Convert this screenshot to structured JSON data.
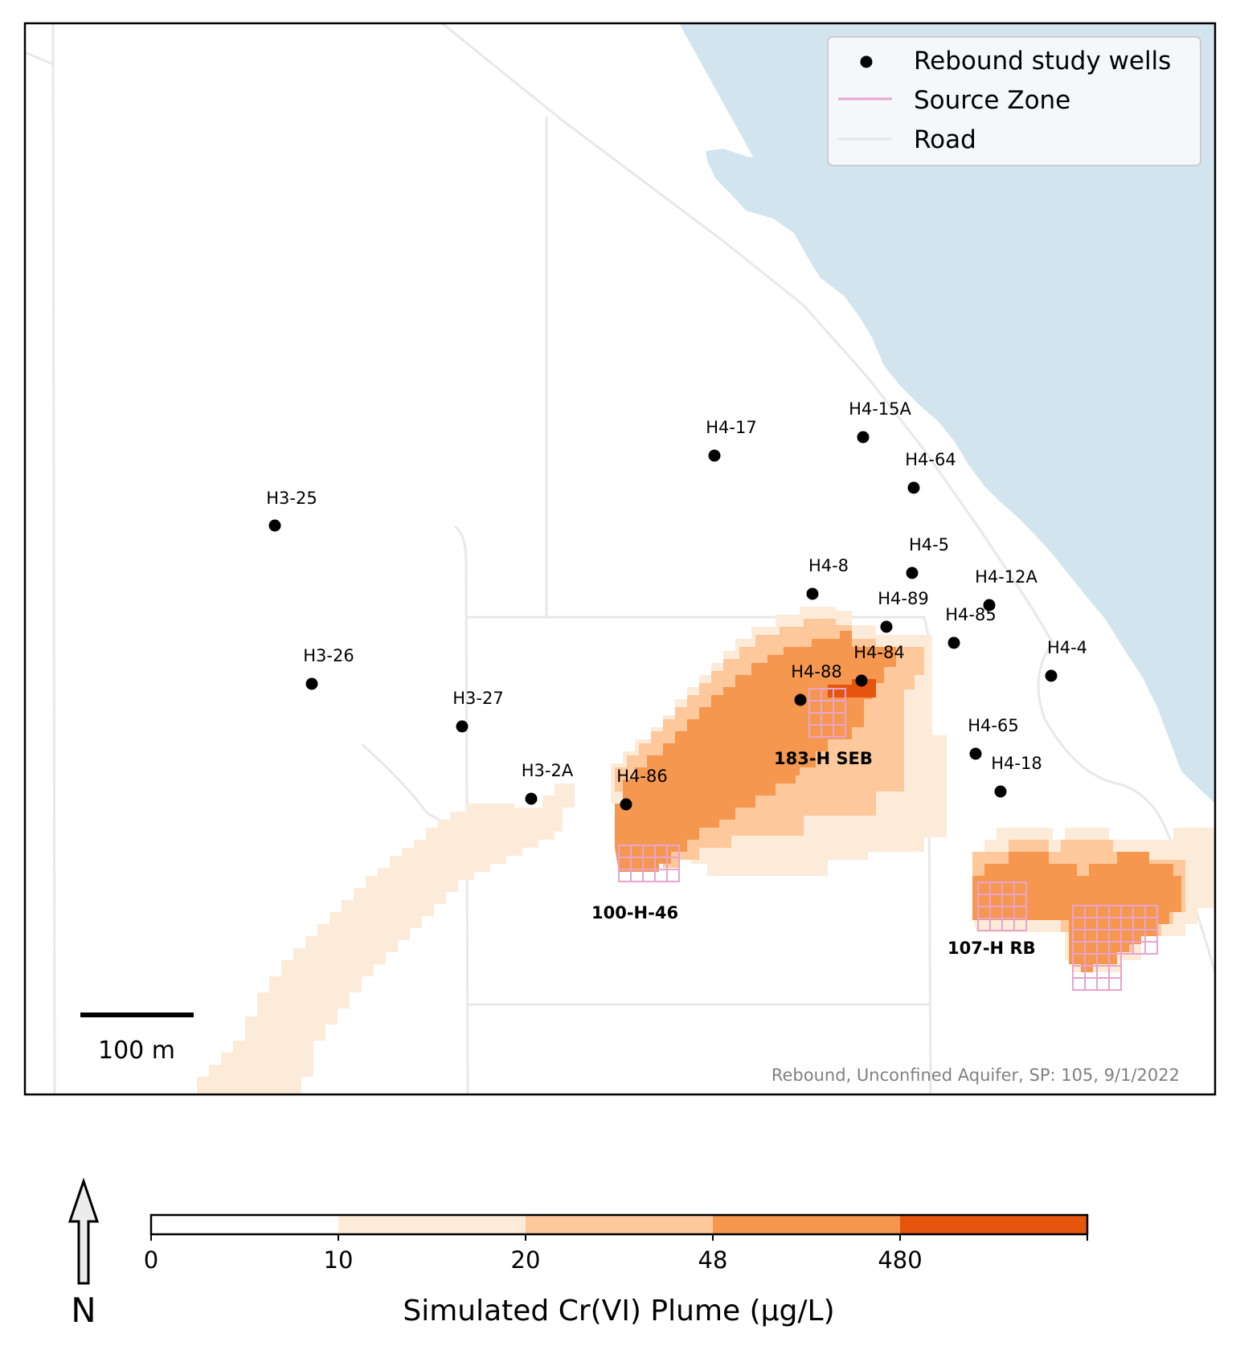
{
  "map": {
    "wells": [
      {
        "id": "H3-25"
      },
      {
        "id": "H3-26"
      },
      {
        "id": "H3-27"
      },
      {
        "id": "H3-2A"
      },
      {
        "id": "H4-86"
      },
      {
        "id": "H4-88"
      },
      {
        "id": "H4-84"
      },
      {
        "id": "H4-89"
      },
      {
        "id": "H4-8"
      },
      {
        "id": "H4-17"
      },
      {
        "id": "H4-15A"
      },
      {
        "id": "H4-64"
      },
      {
        "id": "H4-5"
      },
      {
        "id": "H4-12A"
      },
      {
        "id": "H4-85"
      },
      {
        "id": "H4-4"
      },
      {
        "id": "H4-65"
      },
      {
        "id": "H4-18"
      }
    ],
    "source_zones": [
      "183-H SEB",
      "100-H-46",
      "107-H RB"
    ],
    "legend": {
      "wells_label": "Rebound study wells",
      "source_zone_label": "Source Zone",
      "road_label": "Road"
    },
    "scale_bar_label": "100 m",
    "caption": "Rebound, Unconfined Aquifer, SP: 105, 9/1/2022",
    "north_label": "N",
    "colors": {
      "water": "#d2e5ee",
      "road": "#e6e6e6",
      "source_zone": "#e8a3cf",
      "class_10_20": "#fdebd9",
      "class_20_48": "#fdc89b",
      "class_48_480": "#f5974f",
      "class_480_plus": "#e6550d"
    }
  },
  "colorbar": {
    "title": "Simulated Cr(VI) Plume (µg/L)",
    "ticks": [
      "0",
      "10",
      "20",
      "48",
      "480"
    ],
    "bins": [
      {
        "range": "0-10",
        "color": "#ffffff"
      },
      {
        "range": "10-20",
        "color": "#fdebd9"
      },
      {
        "range": "20-48",
        "color": "#fdc89b"
      },
      {
        "range": "48-480",
        "color": "#f5974f"
      },
      {
        "range": "480+",
        "color": "#e6550d"
      }
    ]
  }
}
